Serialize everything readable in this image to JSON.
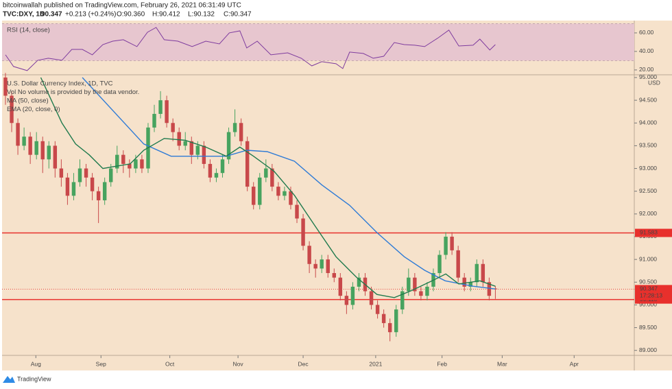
{
  "header": {
    "publisher": "bitcoinwallah published on TradingView.com, February 26, 2021 06:31:49 UTC",
    "symbol": "TVC:DXY, 1D",
    "last": "90.347",
    "change": "+0.213 (+0.24%)",
    "ohlc": [
      "O:90.360",
      "H:90.412",
      "L:90.132",
      "C:90.347"
    ]
  },
  "footer": {
    "brand": "TradingView"
  },
  "chart_data": [
    {
      "type": "candlestick",
      "legend": [
        "U.S. Dollar Currency Index, 1D, TVC",
        "Vol  No volume is provided by the data vendor.",
        "MA (50, close)",
        "EMA (20, close, 0)"
      ],
      "currency": "USD",
      "up_color": "#47a35f",
      "down_color": "#c8484a",
      "xlim": [
        -0.55,
        101.4
      ],
      "xticks": [
        {
          "value": 4.9,
          "label": "Aug"
        },
        {
          "value": 15.4,
          "label": "Sep"
        },
        {
          "value": 26.5,
          "label": "Oct"
        },
        {
          "value": 37.5,
          "label": "Nov"
        },
        {
          "value": 48,
          "label": "Dec"
        },
        {
          "value": 59.7,
          "label": "2021"
        },
        {
          "value": 70.4,
          "label": "Feb"
        },
        {
          "value": 80.1,
          "label": "Mar"
        },
        {
          "value": 91.7,
          "label": "Apr"
        }
      ],
      "ylim": [
        88.89,
        95.045
      ],
      "yticks": [
        {
          "value": 95,
          "label": "95.000"
        },
        {
          "value": 94.5,
          "label": "94.500"
        },
        {
          "value": 94,
          "label": "94.000"
        },
        {
          "value": 93.5,
          "label": "93.500"
        },
        {
          "value": 93,
          "label": "93.000"
        },
        {
          "value": 92.5,
          "label": "92.500"
        },
        {
          "value": 92,
          "label": "92.000"
        },
        {
          "value": 91.5,
          "label": "91.500"
        },
        {
          "value": 91,
          "label": "91.000"
        },
        {
          "value": 90.5,
          "label": "90.500"
        },
        {
          "value": 90,
          "label": "90.000"
        },
        {
          "value": 89.5,
          "label": "89.500"
        },
        {
          "value": 89,
          "label": "89.000"
        }
      ],
      "candles": [
        [
          95.0,
          95.1,
          94.4,
          94.6
        ],
        [
          94.6,
          94.7,
          93.8,
          94.0
        ],
        [
          94.0,
          94.1,
          93.3,
          93.5
        ],
        [
          93.5,
          93.9,
          93.4,
          93.7
        ],
        [
          93.7,
          93.8,
          93.1,
          93.3
        ],
        [
          93.3,
          93.8,
          93.2,
          93.6
        ],
        [
          93.6,
          93.7,
          92.9,
          93.2
        ],
        [
          93.2,
          93.6,
          93.0,
          93.5
        ],
        [
          93.5,
          93.6,
          92.8,
          93.0
        ],
        [
          93.0,
          93.2,
          92.6,
          92.8
        ],
        [
          92.8,
          92.9,
          92.2,
          92.4
        ],
        [
          92.4,
          92.9,
          92.3,
          92.7
        ],
        [
          92.7,
          93.2,
          92.6,
          93.0
        ],
        [
          93.0,
          93.1,
          92.6,
          92.8
        ],
        [
          92.8,
          92.9,
          92.3,
          92.5
        ],
        [
          92.5,
          92.6,
          91.8,
          92.3
        ],
        [
          92.3,
          92.8,
          92.2,
          92.7
        ],
        [
          92.7,
          93.1,
          92.6,
          93.0
        ],
        [
          93.0,
          93.5,
          92.9,
          93.3
        ],
        [
          93.3,
          93.4,
          92.9,
          93.1
        ],
        [
          93.1,
          93.2,
          92.8,
          93.0
        ],
        [
          93.0,
          93.3,
          92.9,
          93.2
        ],
        [
          93.2,
          93.3,
          92.9,
          93.0
        ],
        [
          93.0,
          94.0,
          92.9,
          93.9
        ],
        [
          93.9,
          94.4,
          93.8,
          94.2
        ],
        [
          94.2,
          94.7,
          94.1,
          94.5
        ],
        [
          94.5,
          94.6,
          93.9,
          94.0
        ],
        [
          94.0,
          94.1,
          93.6,
          93.8
        ],
        [
          93.8,
          93.9,
          93.4,
          93.5
        ],
        [
          93.5,
          93.8,
          93.4,
          93.6
        ],
        [
          93.6,
          93.7,
          93.1,
          93.3
        ],
        [
          93.3,
          93.6,
          93.2,
          93.5
        ],
        [
          93.5,
          93.6,
          93.0,
          93.1
        ],
        [
          93.1,
          93.2,
          92.7,
          92.8
        ],
        [
          92.8,
          93.0,
          92.7,
          92.9
        ],
        [
          92.9,
          93.3,
          92.8,
          93.2
        ],
        [
          93.2,
          93.9,
          93.1,
          93.8
        ],
        [
          93.8,
          94.3,
          93.7,
          94.0
        ],
        [
          94.0,
          94.1,
          93.5,
          93.6
        ],
        [
          93.6,
          93.7,
          92.5,
          92.6
        ],
        [
          92.6,
          92.7,
          92.1,
          92.2
        ],
        [
          92.2,
          92.9,
          92.1,
          92.8
        ],
        [
          92.8,
          93.2,
          92.7,
          93.0
        ],
        [
          93.0,
          93.1,
          92.5,
          92.6
        ],
        [
          92.6,
          92.7,
          92.3,
          92.4
        ],
        [
          92.4,
          92.6,
          92.3,
          92.5
        ],
        [
          92.5,
          92.6,
          92.1,
          92.2
        ],
        [
          92.2,
          92.3,
          91.8,
          91.9
        ],
        [
          91.9,
          92.0,
          91.2,
          91.3
        ],
        [
          91.3,
          91.4,
          90.7,
          90.9
        ],
        [
          90.9,
          91.0,
          90.6,
          90.8
        ],
        [
          90.8,
          91.1,
          90.7,
          91.0
        ],
        [
          91.0,
          91.1,
          90.6,
          90.7
        ],
        [
          90.7,
          90.8,
          90.5,
          90.6
        ],
        [
          90.6,
          90.7,
          90.1,
          90.2
        ],
        [
          90.2,
          90.3,
          89.8,
          90.0
        ],
        [
          90.0,
          90.5,
          89.9,
          90.4
        ],
        [
          90.4,
          90.7,
          90.3,
          90.6
        ],
        [
          90.6,
          90.7,
          90.2,
          90.3
        ],
        [
          90.3,
          90.4,
          89.9,
          90.0
        ],
        [
          90.0,
          90.1,
          89.7,
          89.8
        ],
        [
          89.8,
          89.9,
          89.5,
          89.6
        ],
        [
          89.6,
          89.7,
          89.2,
          89.4
        ],
        [
          89.4,
          90.0,
          89.3,
          89.9
        ],
        [
          89.9,
          90.4,
          89.8,
          90.3
        ],
        [
          90.3,
          90.8,
          90.2,
          90.6
        ],
        [
          90.6,
          90.7,
          90.2,
          90.3
        ],
        [
          90.3,
          90.4,
          90.1,
          90.2
        ],
        [
          90.2,
          90.5,
          90.1,
          90.4
        ],
        [
          90.4,
          90.8,
          90.3,
          90.7
        ],
        [
          90.7,
          91.2,
          90.6,
          91.1
        ],
        [
          91.1,
          91.6,
          91.0,
          91.5
        ],
        [
          91.5,
          91.6,
          91.1,
          91.2
        ],
        [
          91.2,
          91.3,
          90.5,
          90.6
        ],
        [
          90.6,
          90.7,
          90.3,
          90.4
        ],
        [
          90.4,
          90.6,
          90.3,
          90.5
        ],
        [
          90.5,
          91.0,
          90.4,
          90.9
        ],
        [
          90.9,
          91.0,
          90.4,
          90.5
        ],
        [
          90.5,
          90.6,
          90.1,
          90.2
        ],
        [
          90.36,
          90.412,
          90.132,
          90.347
        ]
      ],
      "lines": [
        {
          "name": "MA (50, close)",
          "color": "#2e7bd6",
          "x": [
            12.4,
            22.3,
            26.7,
            32.3,
            35.6,
            38.9,
            42.2,
            46.6,
            51,
            55.5,
            59.9,
            64.3,
            67.6,
            70.9,
            75.4,
            79
          ],
          "values": [
            95.0,
            93.54,
            93.27,
            93.27,
            93.27,
            93.4,
            93.37,
            93.16,
            92.64,
            92.19,
            91.59,
            91.06,
            90.76,
            90.53,
            90.41,
            90.35
          ]
        },
        {
          "name": "EMA (20, close, 0)",
          "color": "#1f7a4d",
          "x": [
            5.7,
            9.1,
            11.3,
            13.5,
            15.7,
            17.9,
            20.1,
            22.3,
            25.6,
            29,
            32.3,
            35.6,
            37.8,
            40,
            43.3,
            46.6,
            49.9,
            53.3,
            56.6,
            59.9,
            62.7,
            65.4,
            68.8,
            71,
            73.1,
            76.5,
            79
          ],
          "values": [
            95.0,
            94.0,
            93.54,
            93.3,
            93.0,
            93.05,
            93.1,
            93.4,
            93.66,
            93.62,
            93.47,
            93.27,
            93.47,
            93.27,
            92.94,
            92.41,
            91.74,
            91.06,
            90.61,
            90.23,
            90.16,
            90.31,
            90.53,
            90.68,
            90.46,
            90.53,
            90.41
          ]
        }
      ],
      "levels": [
        {
          "value": 91.583,
          "label": "91.583",
          "color": "#e8302c"
        },
        {
          "value": 90.118,
          "label": "90.118",
          "color": "#e8302c"
        }
      ],
      "last_price": {
        "value": 90.347,
        "label": "90.347",
        "countdown": "17:28:13",
        "color": "#e8302c"
      }
    },
    {
      "type": "line",
      "title": "RSI (14, close)",
      "color": "#7e3b9e",
      "band": [
        30,
        70
      ],
      "ylim": [
        15.5,
        73.3
      ],
      "yticks": [
        {
          "value": 60,
          "label": "60.00"
        },
        {
          "value": 40,
          "label": "40.00"
        },
        {
          "value": 20,
          "label": "20.00"
        }
      ],
      "x": [
        0,
        1.3,
        3.5,
        5.2,
        6.9,
        9.1,
        10.7,
        12.4,
        14,
        15.7,
        17.3,
        19,
        21.2,
        22.9,
        24.3,
        25.6,
        27.8,
        30.1,
        32.3,
        34.5,
        36.1,
        37.8,
        38.9,
        40.6,
        42.8,
        45.5,
        47.7,
        49.4,
        51,
        53.3,
        54.4,
        55.5,
        57.7,
        59.3,
        61,
        62.7,
        64.3,
        66,
        67.6,
        69.8,
        71.5,
        73.1,
        75.4,
        76.5,
        78.1,
        79
      ],
      "values": [
        36.3,
        23.7,
        19.3,
        30.4,
        32.6,
        30.4,
        42.2,
        42.2,
        36.3,
        47.4,
        51.1,
        52.6,
        45.2,
        60.7,
        65.9,
        52.6,
        51.1,
        45.2,
        51.1,
        48.1,
        60,
        62.2,
        43.7,
        51.1,
        36.3,
        38.5,
        32.6,
        24.4,
        28.9,
        26.7,
        21.5,
        39.3,
        37.8,
        32.6,
        34.8,
        49.6,
        47.4,
        46.7,
        45.2,
        54.8,
        63,
        45.9,
        46.7,
        53.3,
        41.5,
        47.4
      ]
    }
  ]
}
